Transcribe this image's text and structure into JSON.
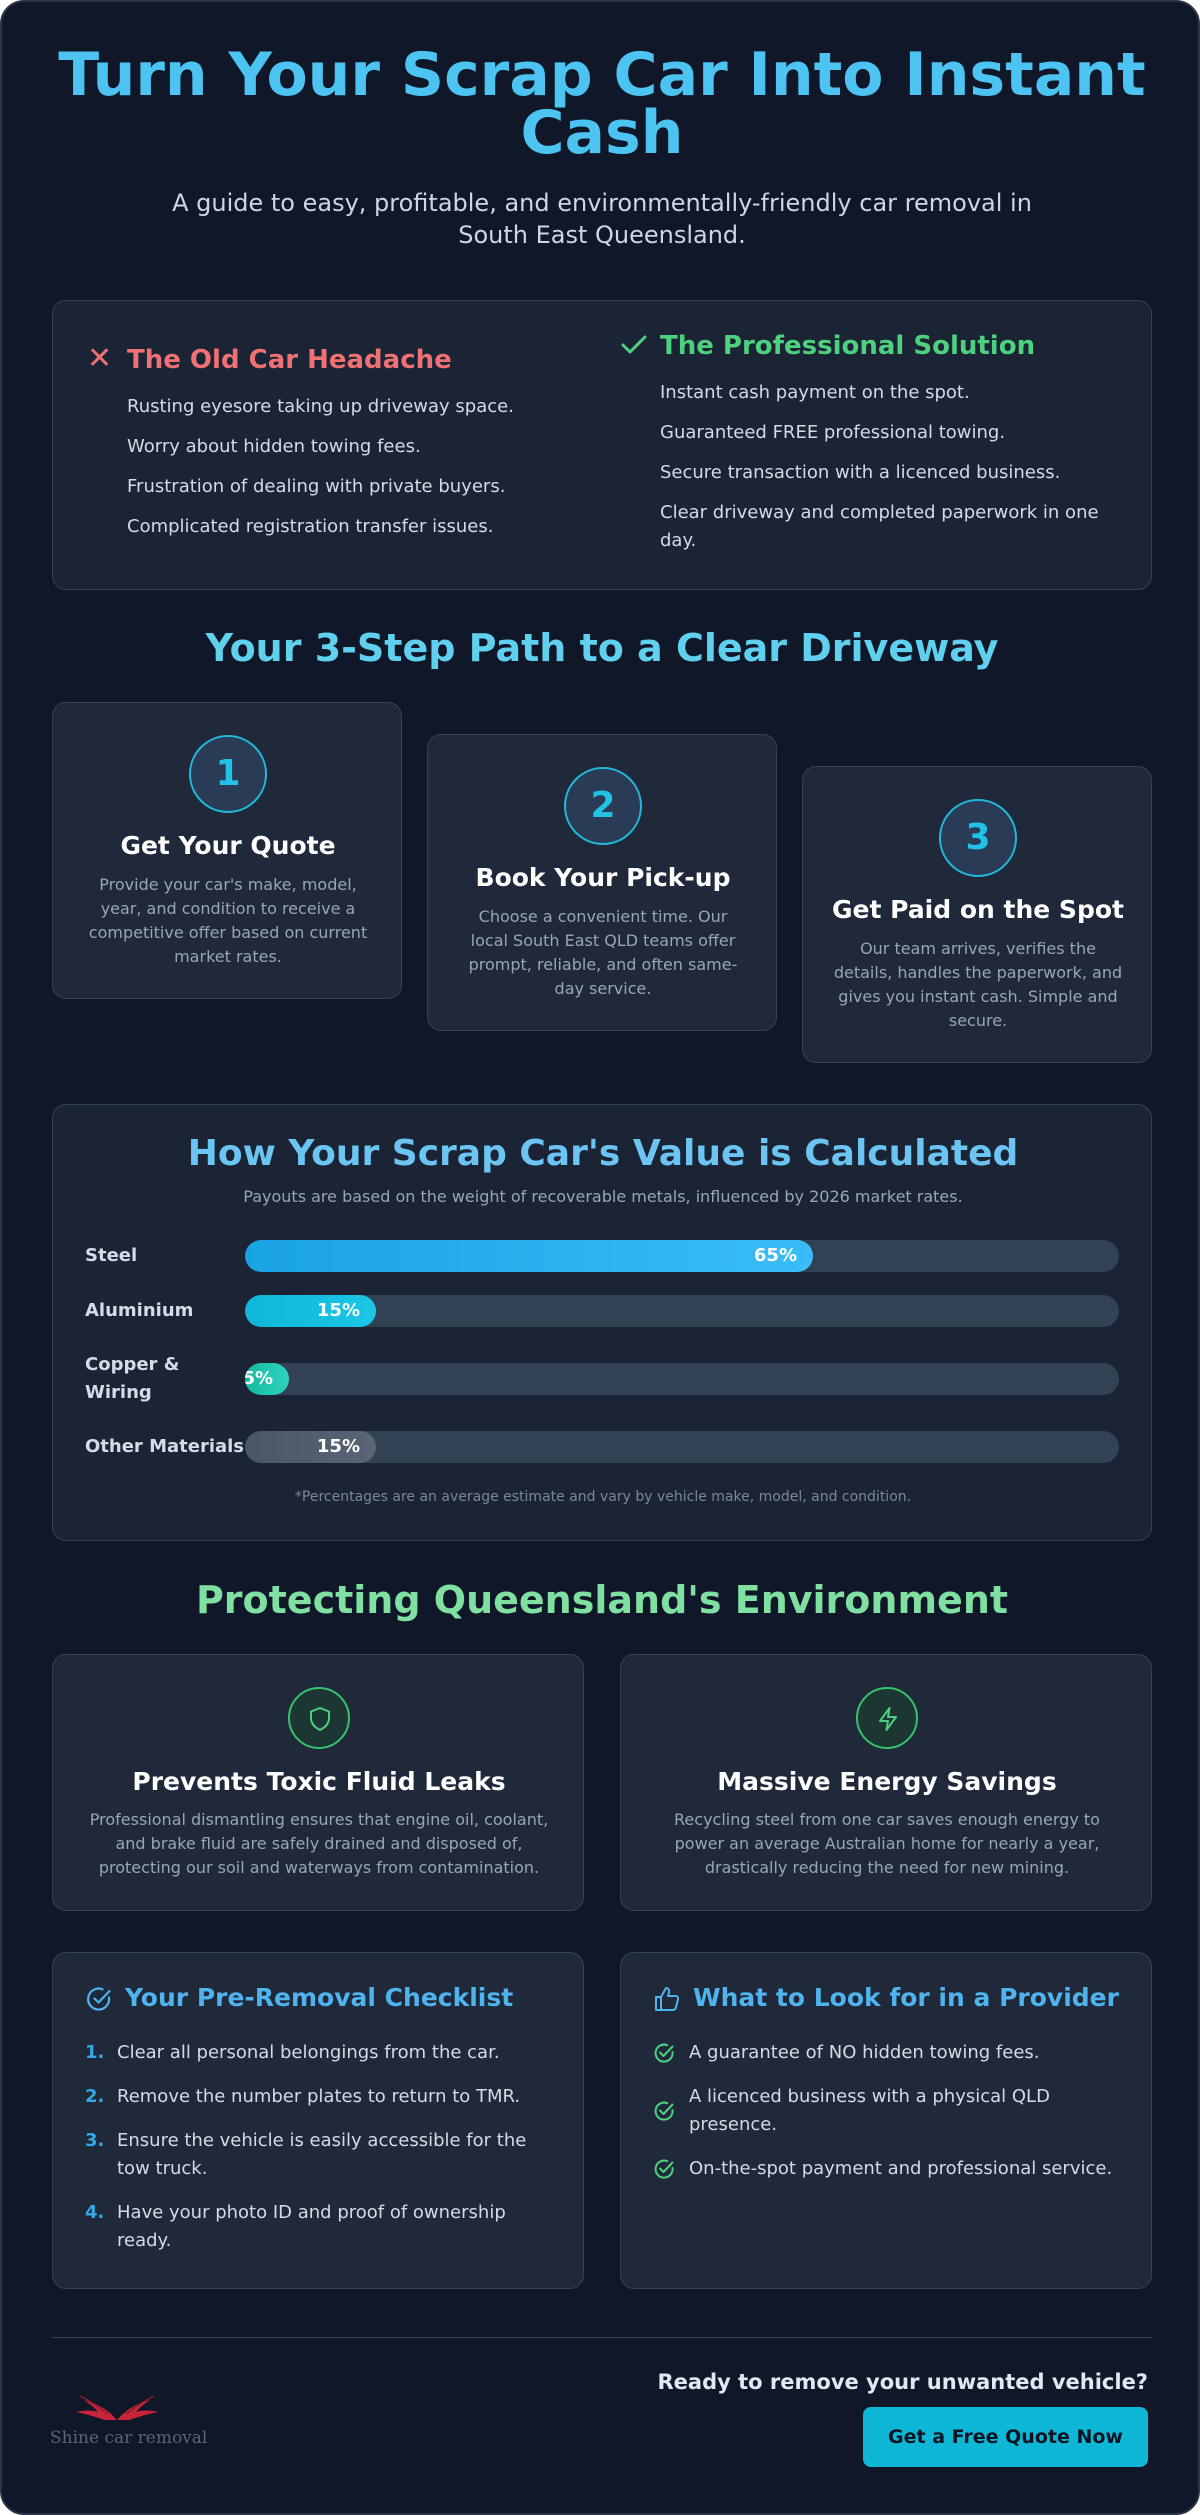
{
  "hero": {
    "title_line1": "Turn Your Scrap Car Into Instant",
    "title_line2": "Cash",
    "subtitle_line1": "A guide to easy, profitable, and environmentally-friendly car removal in",
    "subtitle_line2": "South East Queensland."
  },
  "comparison": {
    "old": {
      "icon": "x-icon",
      "title": "The Old Car Headache",
      "items": [
        "Rusting eyesore taking up driveway space.",
        "Worry about hidden towing fees.",
        "Frustration of dealing with private buyers.",
        "Complicated registration transfer issues."
      ]
    },
    "new": {
      "icon": "check-icon",
      "title": "The Professional Solution",
      "items": [
        "Instant cash payment on the spot.",
        "Guaranteed FREE professional towing.",
        "Secure transaction with a licenced business.",
        "Clear driveway and completed paperwork in one day."
      ]
    }
  },
  "steps": {
    "title": "Your 3-Step Path to a Clear Driveway",
    "items": [
      {
        "number": "1",
        "title": "Get Your Quote",
        "description": "Provide your car's make, model, year, and condition to receive a competitive offer based on current market rates."
      },
      {
        "number": "2",
        "title": "Book Your Pick-up",
        "description": "Choose a convenient time. Our local South East QLD teams offer prompt, reliable, and often same-day service."
      },
      {
        "number": "3",
        "title": "Get Paid on the Spot",
        "description": "Our team arrives, verifies the details, handles the paperwork, and gives you instant cash. Simple and secure."
      }
    ]
  },
  "value": {
    "title": "How Your Scrap Car's Value is Calculated",
    "subtitle": "Payouts are based on the weight of recoverable metals, influenced by 2026 market rates.",
    "footnote": "*Percentages are an average estimate and vary by vehicle make, model, and condition.",
    "bars": [
      {
        "label": "Steel",
        "value_text": "65%",
        "fraction": 0.65,
        "color_start": "#1aa3e3",
        "color_end": "#38bdf8"
      },
      {
        "label": "Aluminium",
        "value_text": "15%",
        "fraction": 0.15,
        "color_start": "#0fb6d8",
        "color_end": "#1cc6e6"
      },
      {
        "label": "Copper & Wiring",
        "value_text": "5%",
        "fraction": 0.05,
        "color_start": "#14b89a",
        "color_end": "#2dd4bf"
      },
      {
        "label": "Other Materials",
        "value_text": "15%",
        "fraction": 0.15,
        "color_start": "#4b5568",
        "color_end": "#5a6477"
      }
    ]
  },
  "environment": {
    "title": "Protecting Queensland's Environment",
    "cards": [
      {
        "icon": "shield-icon",
        "title": "Prevents Toxic Fluid Leaks",
        "description": "Professional dismantling ensures that engine oil, coolant, and brake fluid are safely drained and disposed of, protecting our soil and waterways from contamination."
      },
      {
        "icon": "lightning-bolt-icon",
        "title": "Massive Energy Savings",
        "description": "Recycling steel from one car saves enough energy to power an average Australian home for nearly a year, drastically reducing the need for new mining."
      }
    ]
  },
  "checklist": {
    "icon": "circle-check-icon",
    "title": "Your Pre-Removal Checklist",
    "items": [
      {
        "num": "1.",
        "text": "Clear all personal belongings from the car."
      },
      {
        "num": "2.",
        "text": "Remove the number plates to return to TMR."
      },
      {
        "num": "3.",
        "text": "Ensure the vehicle is easily accessible for the tow truck."
      },
      {
        "num": "4.",
        "text": "Have your photo ID and proof of ownership ready."
      }
    ]
  },
  "provider": {
    "icon": "thumbs-up-icon",
    "title": "What to Look for in a Provider",
    "items": [
      "A guarantee of NO hidden towing fees.",
      "A licenced business with a physical QLD presence.",
      "On-the-spot payment and professional service."
    ]
  },
  "footer": {
    "logo_text": "Shine car removal",
    "cta_text": "Ready to remove your unwanted vehicle?",
    "cta_button": "Get a Free Quote Now"
  },
  "colors": {
    "background": "#0f1729",
    "card": "#1e2738",
    "accent_blue": "#4cc3f0",
    "accent_red": "#f07173",
    "accent_green": "#4ed17f",
    "button": "#0fb7d6"
  }
}
